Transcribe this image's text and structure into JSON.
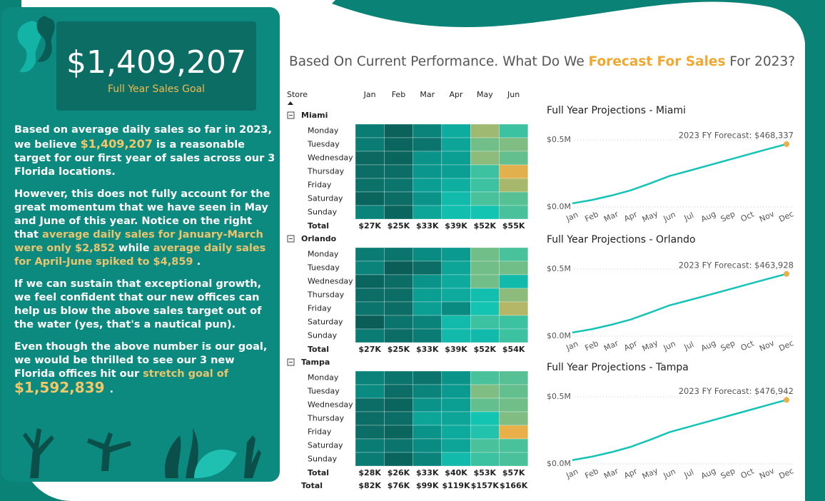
{
  "header": {
    "title": [
      "Based On Current Performance. What Do We ",
      {
        "accent": "Forecast For Sales"
      },
      " For 2023?"
    ]
  },
  "goal": {
    "amount": "$1,409,207",
    "label": "Full Year Sales Goal"
  },
  "paragraphs": [
    [
      "Based on average daily sales so far in 2023, we believe ",
      {
        "accent": "$1,409,207"
      },
      " is a reasonable target for our first year of sales across our 3 Florida locations."
    ],
    [
      "However, this does not fully account for the great momentum that we have seen in May and June of this year.  Notice on the right that ",
      {
        "soft": "average daily sales for January-March were only "
      },
      {
        "soft": " $2,852 "
      },
      " while ",
      {
        "soft": "average daily sales for April-June spiked to "
      },
      {
        "soft": " $4,859"
      },
      " ."
    ],
    [
      "If we can sustain that exceptional growth, we feel confident that our new offices can help us blow the above sales target out of the water (yes, that's a nautical pun)."
    ],
    [
      "Even though the above number is our goal, we would be thrilled to see our 3 new Florida offices hit our ",
      {
        "soft": "stretch goal of "
      },
      {
        "big": " $1,592,839 "
      },
      "."
    ]
  ],
  "chart_data": [
    {
      "type": "heatmap",
      "column_title": "Store",
      "categories": [
        "Jan",
        "Feb",
        "Mar",
        "Apr",
        "May",
        "Jun"
      ],
      "colorscale": [
        "#0b5e58",
        "#0a9a8f",
        "#13c4b3",
        "#7fbd82",
        "#e9b04a"
      ],
      "groups": [
        {
          "name": "Miami",
          "rows": [
            "Monday",
            "Tuesday",
            "Wednesday",
            "Thursday",
            "Friday",
            "Saturday",
            "Sunday"
          ],
          "values": [
            [
              4.0,
              3.3,
              4.2,
              5.5,
              8.5,
              7.0
            ],
            [
              4.0,
              3.4,
              3.8,
              5.2,
              7.8,
              8.0
            ],
            [
              3.5,
              3.4,
              4.6,
              5.0,
              8.2,
              7.6
            ],
            [
              3.6,
              3.6,
              4.7,
              5.0,
              7.0,
              9.5
            ],
            [
              3.7,
              3.8,
              5.0,
              5.6,
              7.0,
              8.6
            ],
            [
              3.4,
              3.6,
              4.6,
              6.0,
              7.2,
              7.4
            ],
            [
              4.2,
              3.4,
              5.2,
              6.2,
              6.4,
              7.2
            ]
          ],
          "total_label": "Total",
          "totals": [
            "$27K",
            "$25K",
            "$33K",
            "$39K",
            "$52K",
            "$55K"
          ]
        },
        {
          "name": "Orlando",
          "rows": [
            "Monday",
            "Tuesday",
            "Wednesday",
            "Thursday",
            "Friday",
            "Saturday",
            "Sunday"
          ],
          "values": [
            [
              4.0,
              3.8,
              4.4,
              4.8,
              7.8,
              7.2
            ],
            [
              4.2,
              3.2,
              3.6,
              5.2,
              7.8,
              7.8
            ],
            [
              3.4,
              3.6,
              4.6,
              5.4,
              7.8,
              6.0
            ],
            [
              3.6,
              3.6,
              5.0,
              5.4,
              6.2,
              8.2
            ],
            [
              3.8,
              3.6,
              5.0,
              4.4,
              6.4,
              8.8
            ],
            [
              3.2,
              3.8,
              4.2,
              6.0,
              7.0,
              7.0
            ],
            [
              4.0,
              3.6,
              4.0,
              6.0,
              6.0,
              7.0
            ]
          ],
          "total_label": "Total",
          "totals": [
            "$27K",
            "$25K",
            "$33K",
            "$39K",
            "$52K",
            "$54K"
          ]
        },
        {
          "name": "Tampa",
          "rows": [
            "Monday",
            "Tuesday",
            "Wednesday",
            "Thursday",
            "Friday",
            "Saturday",
            "Sunday"
          ],
          "values": [
            [
              4.2,
              3.8,
              3.8,
              4.6,
              7.2,
              7.4
            ],
            [
              4.4,
              3.6,
              4.2,
              4.8,
              8.0,
              7.6
            ],
            [
              3.6,
              3.4,
              4.6,
              5.0,
              7.6,
              7.8
            ],
            [
              3.6,
              3.6,
              5.2,
              5.2,
              6.4,
              8.0
            ],
            [
              3.6,
              3.4,
              4.6,
              5.4,
              6.6,
              9.6
            ],
            [
              4.0,
              3.8,
              4.4,
              5.2,
              7.2,
              7.2
            ],
            [
              4.0,
              3.4,
              4.2,
              6.0,
              7.0,
              7.2
            ]
          ],
          "total_label": "Total",
          "totals": [
            "$28K",
            "$26K",
            "$33K",
            "$40K",
            "$53K",
            "$57K"
          ]
        }
      ],
      "grand_total_label": "Total",
      "grand_totals": [
        "$82K",
        "$76K",
        "$99K",
        "$119K",
        "$157K",
        "$166K"
      ]
    },
    {
      "type": "line",
      "title": "Full Year Projections - Miami",
      "categories": [
        "Jan",
        "Feb",
        "Mar",
        "Apr",
        "May",
        "Jun",
        "Jul",
        "Aug",
        "Sep",
        "Oct",
        "Nov",
        "Dec"
      ],
      "series": [
        {
          "color": "#13c3b5",
          "values": [
            27000,
            52000,
            85000,
            124000,
            176000,
            231000,
            270000,
            310000,
            350000,
            390000,
            430000,
            468337
          ]
        }
      ],
      "marker_color": "#e9b04a",
      "annotation": "2023 FY Forecast: $468,337",
      "ylim": [
        0,
        550000
      ],
      "yticks": [
        {
          "value": 0,
          "label": "$0.0M"
        },
        {
          "value": 500000,
          "label": "$0.5M"
        }
      ],
      "grid": true
    },
    {
      "type": "line",
      "title": "Full Year Projections - Orlando",
      "categories": [
        "Jan",
        "Feb",
        "Mar",
        "Apr",
        "May",
        "Jun",
        "Jul",
        "Aug",
        "Sep",
        "Oct",
        "Nov",
        "Dec"
      ],
      "series": [
        {
          "color": "#13c3b5",
          "values": [
            27000,
            52000,
            85000,
            124000,
            176000,
            230000,
            268000,
            307000,
            346000,
            386000,
            425000,
            463928
          ]
        }
      ],
      "marker_color": "#e9b04a",
      "annotation": "2023 FY Forecast: $463,928",
      "ylim": [
        0,
        550000
      ],
      "yticks": [
        {
          "value": 0,
          "label": "$0.0M"
        },
        {
          "value": 500000,
          "label": "$0.5M"
        }
      ],
      "grid": true
    },
    {
      "type": "line",
      "title": "Full Year Projections - Tampa",
      "categories": [
        "Jan",
        "Feb",
        "Mar",
        "Apr",
        "May",
        "Jun",
        "Jul",
        "Aug",
        "Sep",
        "Oct",
        "Nov",
        "Dec"
      ],
      "series": [
        {
          "color": "#13c3b5",
          "values": [
            28000,
            54000,
            87000,
            127000,
            180000,
            237000,
            277000,
            317000,
            357000,
            397000,
            437000,
            476942
          ]
        }
      ],
      "marker_color": "#e9b04a",
      "annotation": "2023 FY Forecast: $476,942",
      "ylim": [
        0,
        550000
      ],
      "yticks": [
        {
          "value": 0,
          "label": "$0.0M"
        },
        {
          "value": 500000,
          "label": "$0.5M"
        }
      ],
      "grid": true
    }
  ]
}
